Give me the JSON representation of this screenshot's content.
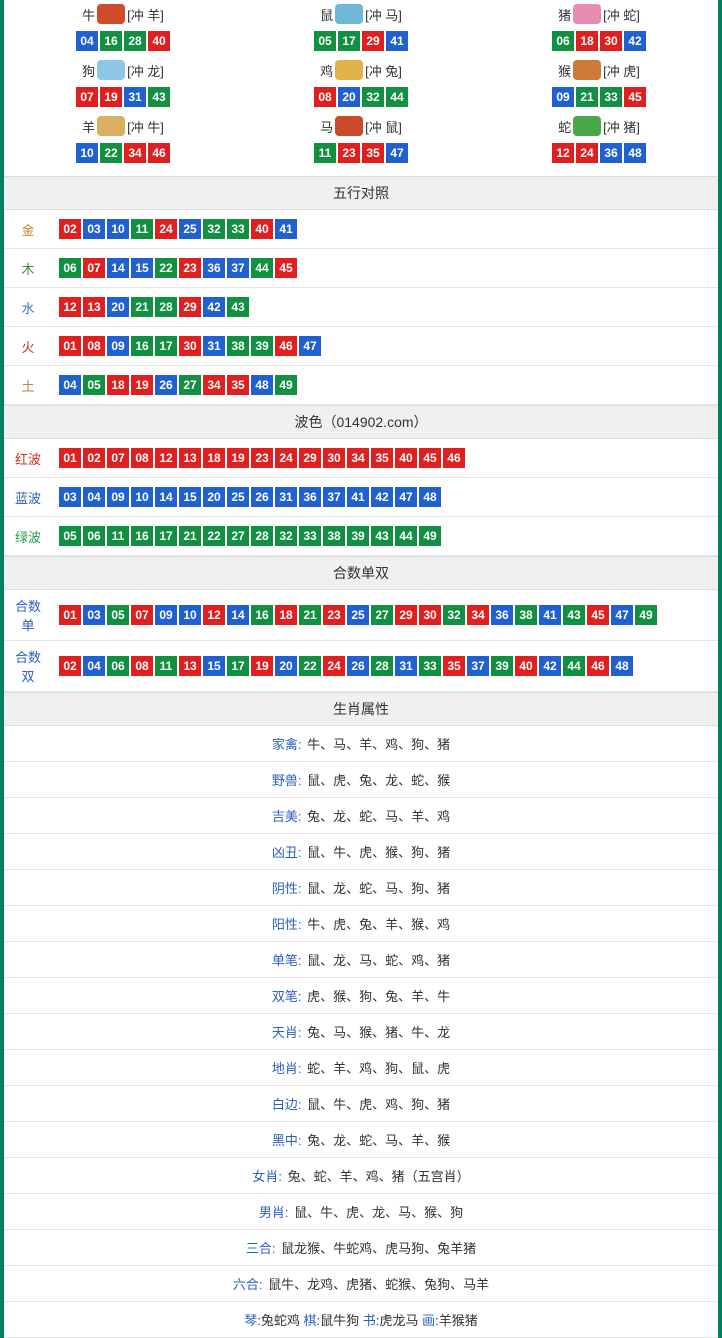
{
  "colors": {
    "red": "#e02020",
    "blue": "#2060d0",
    "green": "#109040",
    "border": "#008060",
    "section_bg": "#f0f0f0",
    "row_border": "#e5e5e5",
    "key_text": "#2a60c0"
  },
  "ball_color_map": {
    "red": [
      "01",
      "02",
      "07",
      "08",
      "12",
      "13",
      "18",
      "19",
      "23",
      "24",
      "29",
      "30",
      "34",
      "35",
      "40",
      "45",
      "46"
    ],
    "blue": [
      "03",
      "04",
      "09",
      "10",
      "14",
      "15",
      "20",
      "25",
      "26",
      "31",
      "36",
      "37",
      "41",
      "42",
      "47",
      "48"
    ],
    "green": [
      "05",
      "06",
      "11",
      "16",
      "17",
      "21",
      "22",
      "27",
      "28",
      "32",
      "33",
      "38",
      "39",
      "43",
      "44",
      "49"
    ]
  },
  "zodiac": [
    {
      "name": "牛",
      "icon": "niu",
      "clash": "[冲 羊]",
      "nums": [
        "04",
        "16",
        "28",
        "40"
      ]
    },
    {
      "name": "鼠",
      "icon": "shu",
      "clash": "[冲 马]",
      "nums": [
        "05",
        "17",
        "29",
        "41"
      ]
    },
    {
      "name": "猪",
      "icon": "zhu",
      "clash": "[冲 蛇]",
      "nums": [
        "06",
        "18",
        "30",
        "42"
      ]
    },
    {
      "name": "狗",
      "icon": "gou",
      "clash": "[冲 龙]",
      "nums": [
        "07",
        "19",
        "31",
        "43"
      ]
    },
    {
      "name": "鸡",
      "icon": "ji",
      "clash": "[冲 兔]",
      "nums": [
        "08",
        "20",
        "32",
        "44"
      ]
    },
    {
      "name": "猴",
      "icon": "hou",
      "clash": "[冲 虎]",
      "nums": [
        "09",
        "21",
        "33",
        "45"
      ]
    },
    {
      "name": "羊",
      "icon": "yang",
      "clash": "[冲 牛]",
      "nums": [
        "10",
        "22",
        "34",
        "46"
      ]
    },
    {
      "name": "马",
      "icon": "ma",
      "clash": "[冲 鼠]",
      "nums": [
        "11",
        "23",
        "35",
        "47"
      ]
    },
    {
      "name": "蛇",
      "icon": "she",
      "clash": "[冲 猪]",
      "nums": [
        "12",
        "24",
        "36",
        "48"
      ]
    }
  ],
  "sections": {
    "wuxing": {
      "title": "五行对照",
      "rows": [
        {
          "label": "金",
          "cls": "gold",
          "nums": [
            "02",
            "03",
            "10",
            "11",
            "24",
            "25",
            "32",
            "33",
            "40",
            "41"
          ]
        },
        {
          "label": "木",
          "cls": "wood",
          "nums": [
            "06",
            "07",
            "14",
            "15",
            "22",
            "23",
            "36",
            "37",
            "44",
            "45"
          ]
        },
        {
          "label": "水",
          "cls": "water",
          "nums": [
            "12",
            "13",
            "20",
            "21",
            "28",
            "29",
            "42",
            "43"
          ]
        },
        {
          "label": "火",
          "cls": "fire",
          "nums": [
            "01",
            "08",
            "09",
            "16",
            "17",
            "30",
            "31",
            "38",
            "39",
            "46",
            "47"
          ]
        },
        {
          "label": "土",
          "cls": "earth",
          "nums": [
            "04",
            "05",
            "18",
            "19",
            "26",
            "27",
            "34",
            "35",
            "48",
            "49"
          ]
        }
      ]
    },
    "bose": {
      "title": "波色（014902.com）",
      "rows": [
        {
          "label": "红波",
          "cls": "redtxt",
          "nums": [
            "01",
            "02",
            "07",
            "08",
            "12",
            "13",
            "18",
            "19",
            "23",
            "24",
            "29",
            "30",
            "34",
            "35",
            "40",
            "45",
            "46"
          ]
        },
        {
          "label": "蓝波",
          "cls": "bluetxt",
          "nums": [
            "03",
            "04",
            "09",
            "10",
            "14",
            "15",
            "20",
            "25",
            "26",
            "31",
            "36",
            "37",
            "41",
            "42",
            "47",
            "48"
          ]
        },
        {
          "label": "绿波",
          "cls": "greentxt",
          "nums": [
            "05",
            "06",
            "11",
            "16",
            "17",
            "21",
            "22",
            "27",
            "28",
            "32",
            "33",
            "38",
            "39",
            "43",
            "44",
            "49"
          ]
        }
      ]
    },
    "heshu": {
      "title": "合数单双",
      "rows": [
        {
          "label": "合数单",
          "cls": "bluetxt",
          "nums": [
            "01",
            "03",
            "05",
            "07",
            "09",
            "10",
            "12",
            "14",
            "16",
            "18",
            "21",
            "23",
            "25",
            "27",
            "29",
            "30",
            "32",
            "34",
            "36",
            "38",
            "41",
            "43",
            "45",
            "47",
            "49"
          ]
        },
        {
          "label": "合数双",
          "cls": "bluetxt",
          "nums": [
            "02",
            "04",
            "06",
            "08",
            "11",
            "13",
            "15",
            "17",
            "19",
            "20",
            "22",
            "24",
            "26",
            "28",
            "31",
            "33",
            "35",
            "37",
            "39",
            "40",
            "42",
            "44",
            "46",
            "48"
          ]
        }
      ]
    },
    "attrs": {
      "title": "生肖属性",
      "rows": [
        {
          "key": "家禽",
          "val": "牛、马、羊、鸡、狗、猪"
        },
        {
          "key": "野兽",
          "val": "鼠、虎、兔、龙、蛇、猴"
        },
        {
          "key": "吉美",
          "val": "兔、龙、蛇、马、羊、鸡"
        },
        {
          "key": "凶丑",
          "val": "鼠、牛、虎、猴、狗、猪"
        },
        {
          "key": "阴性",
          "val": "鼠、龙、蛇、马、狗、猪"
        },
        {
          "key": "阳性",
          "val": "牛、虎、兔、羊、猴、鸡"
        },
        {
          "key": "单笔",
          "val": "鼠、龙、马、蛇、鸡、猪"
        },
        {
          "key": "双笔",
          "val": "虎、猴、狗、兔、羊、牛"
        },
        {
          "key": "天肖",
          "val": "兔、马、猴、猪、牛、龙"
        },
        {
          "key": "地肖",
          "val": "蛇、羊、鸡、狗、鼠、虎"
        },
        {
          "key": "白边",
          "val": "鼠、牛、虎、鸡、狗、猪"
        },
        {
          "key": "黑中",
          "val": "兔、龙、蛇、马、羊、猴"
        },
        {
          "key": "女肖",
          "val": "兔、蛇、羊、鸡、猪（五宫肖）"
        },
        {
          "key": "男肖",
          "val": "鼠、牛、虎、龙、马、猴、狗"
        },
        {
          "key": "三合",
          "val": "鼠龙猴、牛蛇鸡、虎马狗、兔羊猪"
        },
        {
          "key": "六合",
          "val": "鼠牛、龙鸡、虎猪、蛇猴、兔狗、马羊"
        }
      ],
      "bottom_line": [
        {
          "key": "琴",
          "val": "兔蛇鸡"
        },
        {
          "key": "棋",
          "val": "鼠牛狗"
        },
        {
          "key": "书",
          "val": "虎龙马"
        },
        {
          "key": "画",
          "val": "羊猴猪"
        }
      ]
    }
  }
}
